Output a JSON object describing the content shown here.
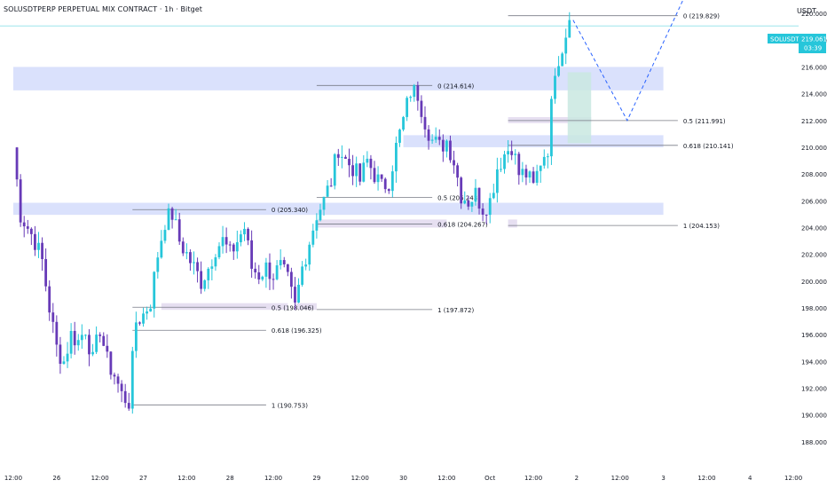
{
  "header": {
    "symbol_title": "SOLUSDTPERP PERPETUAL MIX CONTRACT · 1h · Bitget",
    "currency": "USDT"
  },
  "price_badge": {
    "symbol": "SOLUSDT.P",
    "price": "219.061",
    "countdown": "03:39"
  },
  "colors": {
    "up": "#26c6da",
    "down": "#673ab7",
    "zone": "#d6defc",
    "small_zone": "#e3dbf0",
    "target": "#c9e8e0",
    "fib": "#787b86",
    "projection": "#2962ff",
    "hline": "#9ee5ec"
  },
  "chart_data": {
    "type": "candlestick",
    "y_axis": {
      "min": 186,
      "max": 221,
      "ticks": [
        "188.000",
        "190.000",
        "192.000",
        "194.000",
        "196.000",
        "198.000",
        "200.000",
        "202.000",
        "204.000",
        "206.000",
        "208.000",
        "210.000",
        "212.000",
        "214.000",
        "216.000",
        "218.000",
        "220.000"
      ]
    },
    "x_axis": {
      "min": 0,
      "max": 180,
      "labels": [
        {
          "i": 0,
          "text": "12:00"
        },
        {
          "i": 12,
          "text": "26"
        },
        {
          "i": 24,
          "text": "12:00"
        },
        {
          "i": 36,
          "text": "27"
        },
        {
          "i": 48,
          "text": "12:00"
        },
        {
          "i": 60,
          "text": "28"
        },
        {
          "i": 72,
          "text": "12:00"
        },
        {
          "i": 84,
          "text": "29"
        },
        {
          "i": 96,
          "text": "12:00"
        },
        {
          "i": 108,
          "text": "30"
        },
        {
          "i": 120,
          "text": "12:00"
        },
        {
          "i": 132,
          "text": "Oct"
        },
        {
          "i": 144,
          "text": "12:00"
        },
        {
          "i": 156,
          "text": "2"
        },
        {
          "i": 168,
          "text": "12:00"
        },
        {
          "i": 180,
          "text": "3"
        }
      ]
    },
    "path_points": [
      [
        0,
        210
      ],
      [
        2,
        205
      ],
      [
        4,
        204
      ],
      [
        6,
        203
      ],
      [
        8,
        201.5
      ],
      [
        10,
        198
      ],
      [
        12,
        195
      ],
      [
        14,
        194
      ],
      [
        16,
        196
      ],
      [
        18,
        195.5
      ],
      [
        20,
        196.5
      ],
      [
        22,
        194
      ],
      [
        24,
        196.5
      ],
      [
        26,
        194
      ],
      [
        28,
        193
      ],
      [
        30,
        191.5
      ],
      [
        32,
        191
      ],
      [
        34,
        197
      ],
      [
        36,
        197.5
      ],
      [
        38,
        198.5
      ],
      [
        40,
        202
      ],
      [
        42,
        204.5
      ],
      [
        44,
        205
      ],
      [
        46,
        203
      ],
      [
        48,
        202
      ],
      [
        50,
        201
      ],
      [
        52,
        200
      ],
      [
        54,
        201
      ],
      [
        56,
        202.5
      ],
      [
        58,
        203
      ],
      [
        60,
        202
      ],
      [
        62,
        203
      ],
      [
        64,
        204
      ],
      [
        66,
        201
      ],
      [
        68,
        200.5
      ],
      [
        70,
        201
      ],
      [
        72,
        200.5
      ],
      [
        74,
        201
      ],
      [
        76,
        200
      ],
      [
        78,
        198
      ],
      [
        80,
        201
      ],
      [
        82,
        203
      ],
      [
        84,
        205
      ],
      [
        86,
        206
      ],
      [
        88,
        207.5
      ],
      [
        90,
        210
      ],
      [
        92,
        209
      ],
      [
        94,
        208.5
      ],
      [
        96,
        207.5
      ],
      [
        98,
        209
      ],
      [
        100,
        208
      ],
      [
        102,
        207
      ],
      [
        104,
        207.5
      ],
      [
        106,
        210
      ],
      [
        108,
        212
      ],
      [
        110,
        214.2
      ],
      [
        112,
        214
      ],
      [
        114,
        212
      ],
      [
        116,
        210.5
      ],
      [
        118,
        210
      ],
      [
        120,
        210.5
      ],
      [
        122,
        209
      ],
      [
        124,
        206.5
      ],
      [
        126,
        206
      ],
      [
        128,
        206.5
      ],
      [
        130,
        205.5
      ],
      [
        132,
        206
      ],
      [
        134,
        208.5
      ],
      [
        136,
        209.5
      ],
      [
        138,
        210.2
      ],
      [
        140,
        208
      ],
      [
        142,
        208
      ],
      [
        144,
        207
      ],
      [
        146,
        209
      ],
      [
        148,
        210
      ],
      [
        150,
        216
      ],
      [
        152,
        217.5
      ],
      [
        154,
        219.5
      ]
    ],
    "zones": [
      {
        "from_i": 0,
        "to_i": 180,
        "low": 214.25,
        "high": 216.0,
        "kind": "zone"
      },
      {
        "from_i": 0,
        "to_i": 180,
        "low": 204.95,
        "high": 205.85,
        "kind": "zone"
      },
      {
        "from_i": 108,
        "to_i": 180,
        "low": 210.0,
        "high": 210.9,
        "kind": "zone"
      },
      {
        "from_i": 84,
        "to_i": 120,
        "low": 204.0,
        "high": 204.6,
        "kind": "small_zone"
      },
      {
        "from_i": 41,
        "to_i": 76,
        "low": 197.85,
        "high": 198.35,
        "kind": "small_zone"
      },
      {
        "from_i": 78,
        "to_i": 84,
        "low": 197.85,
        "high": 198.35,
        "kind": "small_zone"
      },
      {
        "from_i": 137,
        "to_i": 139.5,
        "low": 204.0,
        "high": 204.6,
        "kind": "small_zone"
      },
      {
        "from_i": 137,
        "to_i": 160,
        "low": 211.8,
        "high": 212.25,
        "kind": "small_zone"
      },
      {
        "from_i": 153.5,
        "to_i": 160,
        "low": 210.3,
        "high": 215.6,
        "kind": "target"
      }
    ],
    "fib_levels": [
      {
        "from_i": 33,
        "to_i": 70,
        "price": 205.34,
        "label": "0 (205.340)"
      },
      {
        "from_i": 33,
        "to_i": 70,
        "price": 198.046,
        "label": "0.5 (198.046)"
      },
      {
        "from_i": 33,
        "to_i": 70,
        "price": 196.325,
        "label": "0.618 (196.325)"
      },
      {
        "from_i": 33,
        "to_i": 70,
        "price": 190.753,
        "label": "1 (190.753)"
      },
      {
        "from_i": 84,
        "to_i": 116,
        "price": 214.614,
        "label": "0 (214.614)"
      },
      {
        "from_i": 84,
        "to_i": 116,
        "price": 206.243,
        "label": "0.5 (206.243)"
      },
      {
        "from_i": 84,
        "to_i": 116,
        "price": 204.267,
        "label": "0.618 (204.267)"
      },
      {
        "from_i": 84,
        "to_i": 116,
        "price": 197.872,
        "label": "1 (197.872)"
      },
      {
        "from_i": 137,
        "to_i": 184,
        "price": 219.829,
        "label": "0 (219.829)"
      },
      {
        "from_i": 137,
        "to_i": 184,
        "price": 211.991,
        "label": "0.5 (211.991)"
      },
      {
        "from_i": 137,
        "to_i": 184,
        "price": 210.141,
        "label": "0.618 (210.141)"
      },
      {
        "from_i": 137,
        "to_i": 184,
        "price": 204.153,
        "label": "1 (204.153)"
      }
    ],
    "projection": [
      [
        155,
        219.5
      ],
      [
        170,
        212
      ],
      [
        188,
        222.5
      ]
    ],
    "current_price": 219.061
  }
}
